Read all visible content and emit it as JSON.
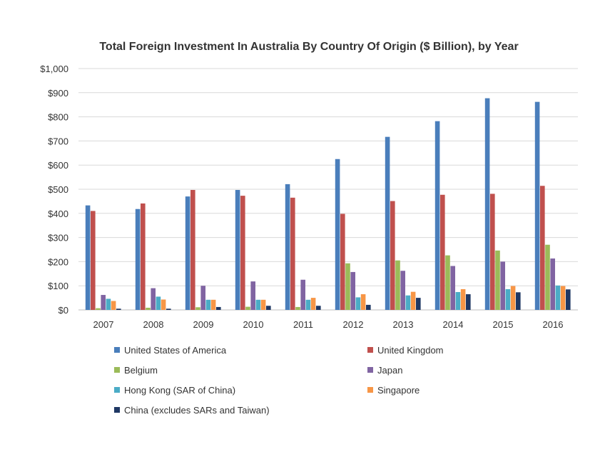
{
  "chart_data": {
    "type": "bar",
    "title": "Total Foreign Investment In Australia By Country Of Origin ($ Billion), by Year",
    "xlabel": "",
    "ylabel": "",
    "ylim": [
      0,
      1000
    ],
    "yticks": [
      "$0",
      "$100",
      "$200",
      "$300",
      "$400",
      "$500",
      "$600",
      "$700",
      "$800",
      "$900",
      "$1,000"
    ],
    "grid": true,
    "legend_position": "bottom",
    "categories": [
      "2007",
      "2008",
      "2009",
      "2010",
      "2011",
      "2012",
      "2013",
      "2014",
      "2015",
      "2016"
    ],
    "series": [
      {
        "name": "United States of America",
        "color": "#4a7ebb",
        "values": [
          433,
          418,
          470,
          497,
          521,
          625,
          717,
          782,
          877,
          862
        ]
      },
      {
        "name": "United Kingdom",
        "color": "#c0504d",
        "values": [
          410,
          441,
          497,
          473,
          465,
          398,
          451,
          477,
          481,
          514
        ]
      },
      {
        "name": "Belgium",
        "color": "#9bbb59",
        "values": [
          7,
          9,
          11,
          13,
          12,
          193,
          205,
          226,
          246,
          270
        ]
      },
      {
        "name": "Japan",
        "color": "#8064a2",
        "values": [
          62,
          90,
          100,
          118,
          125,
          157,
          162,
          182,
          200,
          213
        ]
      },
      {
        "name": "Hong Kong (SAR of China)",
        "color": "#4bacc6",
        "values": [
          46,
          55,
          42,
          42,
          42,
          52,
          60,
          74,
          86,
          101
        ]
      },
      {
        "name": "Singapore",
        "color": "#f79646",
        "values": [
          37,
          43,
          42,
          42,
          50,
          65,
          75,
          86,
          99,
          99
        ]
      },
      {
        "name": "China (excludes SARs and Taiwan)",
        "color": "#1f3864",
        "values": [
          5,
          5,
          12,
          17,
          17,
          21,
          50,
          65,
          73,
          85
        ]
      }
    ]
  }
}
